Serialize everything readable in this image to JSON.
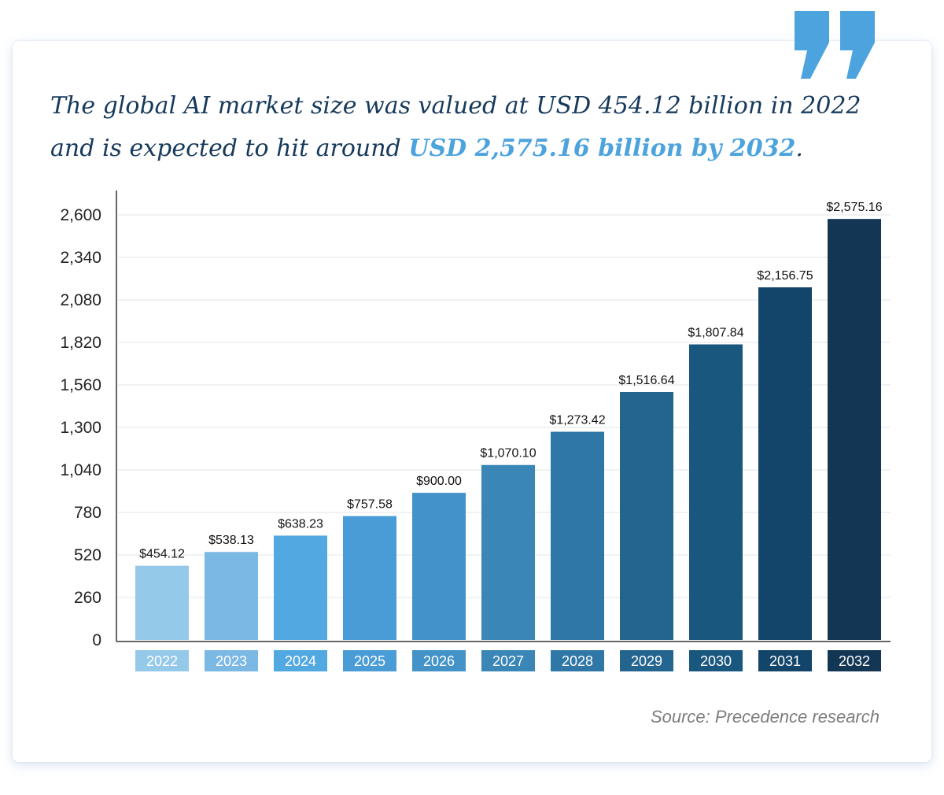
{
  "headline": {
    "prefix": "The global AI market size was valued at USD 454.12 billion in 2022 and is expected to hit around ",
    "highlight": "USD 2,575.16 billion by 2032",
    "suffix": "."
  },
  "source": "Source: Precedence research",
  "colors": {
    "headline_text": "#173a5c",
    "highlight_text": "#4da3dd",
    "quote_mark": "#4da3dd",
    "bars": [
      "#95c9ea",
      "#7bb8e4",
      "#52a8e0",
      "#4a9cd6",
      "#4393c9",
      "#3a86b6",
      "#2f77a6",
      "#24658f",
      "#1a577f",
      "#124569",
      "#123654"
    ]
  },
  "chart_data": {
    "type": "bar",
    "categories": [
      "2022",
      "2023",
      "2024",
      "2025",
      "2026",
      "2027",
      "2028",
      "2029",
      "2030",
      "2031",
      "2032"
    ],
    "values": [
      454.12,
      538.13,
      638.23,
      757.58,
      900.0,
      1070.1,
      1273.42,
      1516.64,
      1807.84,
      2156.75,
      2575.16
    ],
    "value_labels": [
      "$454.12",
      "$538.13",
      "$638.23",
      "$757.58",
      "$900.00",
      "$1,070.10",
      "$1,273.42",
      "$1,516.64",
      "$1,807.84",
      "$2,156.75",
      "$2,575.16"
    ],
    "yticks": [
      "0",
      "260",
      "520",
      "780",
      "1,040",
      "1,300",
      "1,560",
      "1,820",
      "2,080",
      "2,340",
      "2,600"
    ],
    "ylim": [
      0,
      2600
    ],
    "grid": true
  }
}
